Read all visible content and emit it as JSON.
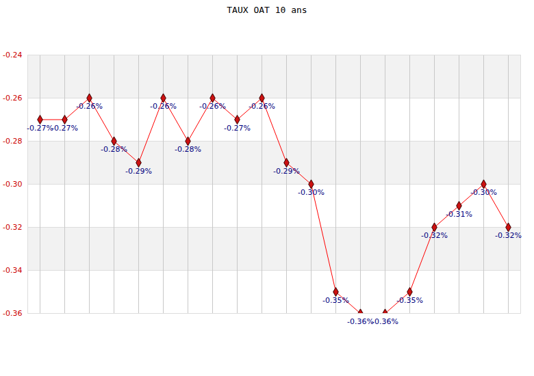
{
  "chart_data": {
    "type": "line",
    "title": "TAUX OAT 10 ans",
    "categories": [
      null,
      null,
      null,
      null,
      null,
      null,
      null,
      null,
      null,
      null,
      null,
      null,
      null,
      null,
      null,
      null,
      null,
      null,
      null,
      null
    ],
    "values": [
      -0.27,
      -0.27,
      -0.26,
      -0.28,
      -0.29,
      -0.26,
      -0.28,
      -0.26,
      -0.27,
      -0.26,
      -0.29,
      -0.3,
      -0.35,
      -0.36,
      -0.36,
      -0.35,
      -0.32,
      -0.31,
      -0.3,
      -0.32
    ],
    "value_labels": [
      "-0.27%",
      "-0.27%",
      "-0.26%",
      "-0.28%",
      "-0.29%",
      "-0.26%",
      "-0.28%",
      "-0.26%",
      "-0.27%",
      "-0.26%",
      "-0.29%",
      "-0.30%",
      "-0.35%",
      "-0.36%",
      "-0.36%",
      "-0.35%",
      "-0.32%",
      "-0.31%",
      "-0.30%",
      "-0.32%"
    ],
    "color": "#ff0000",
    "marker": "diamond",
    "data_labels": true,
    "grid": true,
    "tick_labels": "y",
    "ylim": [
      -0.36,
      -0.24
    ],
    "yticks": [
      -0.36,
      -0.34,
      -0.32,
      {
        "value": -0.3,
        "label": "-0.30"
      },
      -0.28,
      -0.26,
      -0.24
    ]
  }
}
